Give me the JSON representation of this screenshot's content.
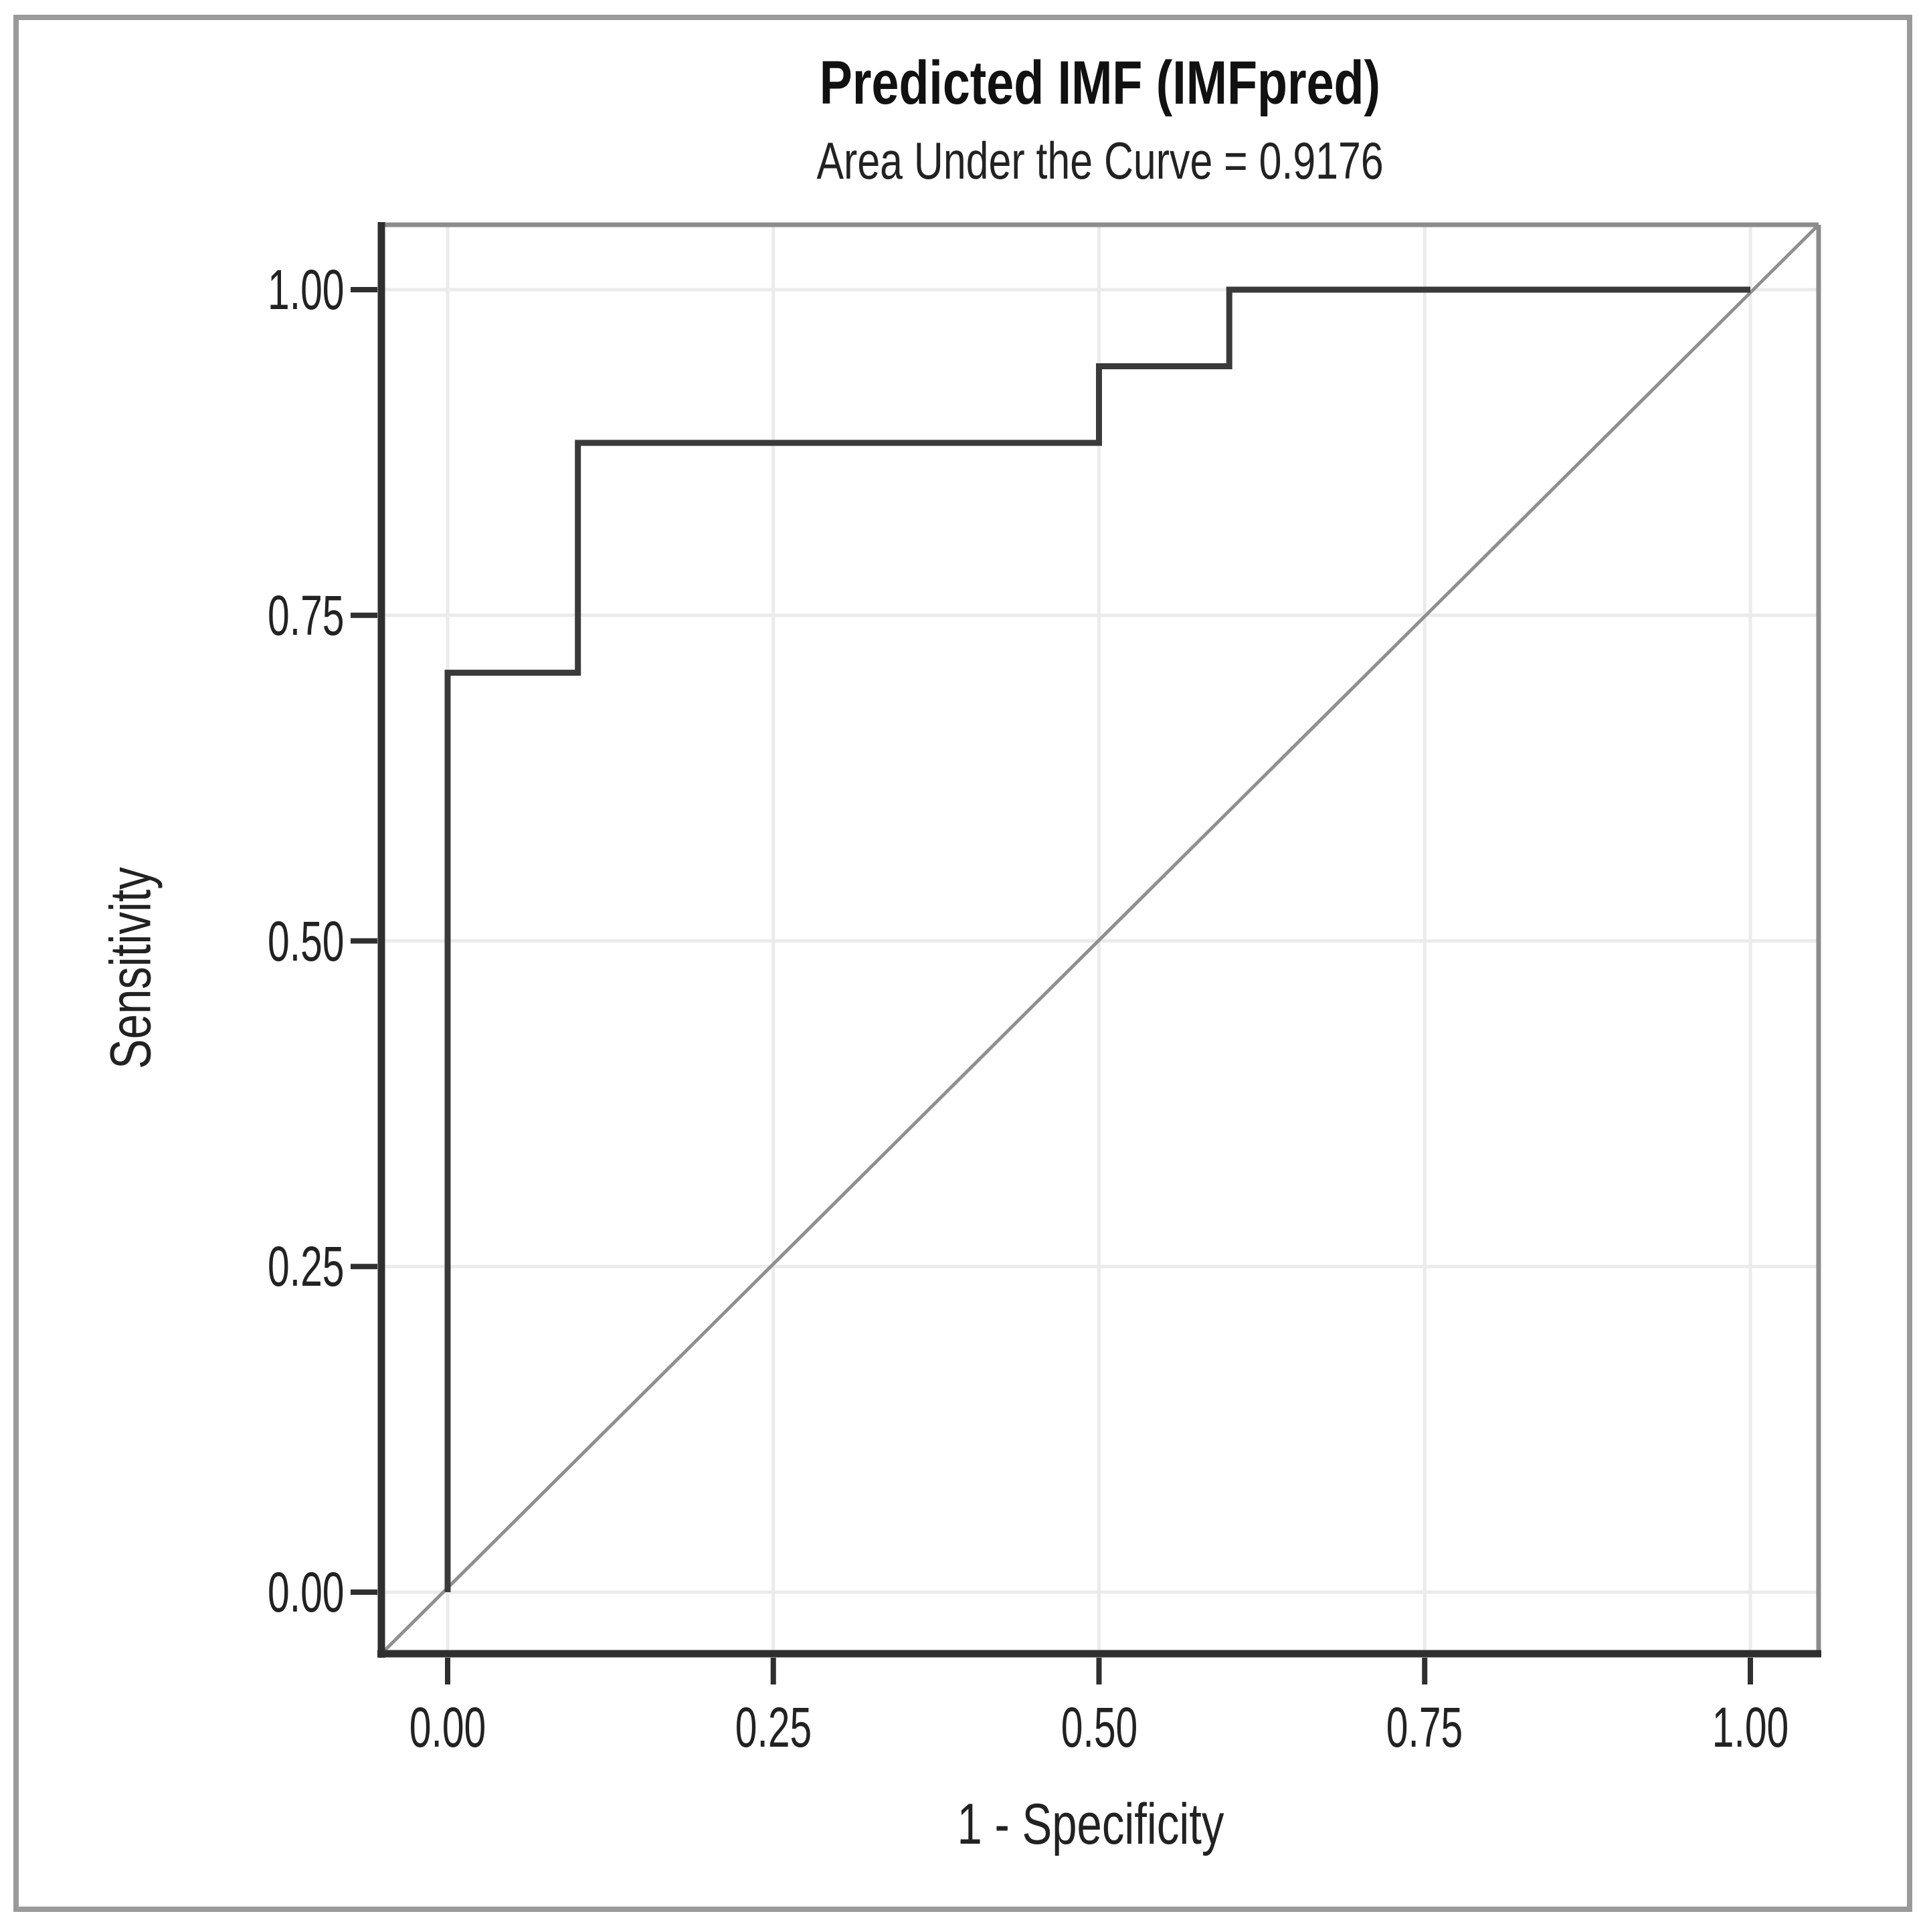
{
  "figure": {
    "kind": "ROC curve plot",
    "auc_value": "0.9176"
  },
  "colors": {
    "curve": "#3a3a3a",
    "diagonal": "#8f8f8f",
    "grid": "#ebebeb",
    "axis": "#2f2f2f",
    "box_border": "#8c8c8c",
    "outer_border": "#9a9a9a",
    "text": "#1f1f1f",
    "background": "#ffffff"
  },
  "chart_data": {
    "type": "line",
    "subtype": "roc-step",
    "title": "Predicted IMF (IMFpred)",
    "subtitle": "Area Under the Curve = 0.9176",
    "auc": 0.9176,
    "xlabel": "1 - Specificity",
    "ylabel": "Sensitivity",
    "xlim": [
      0,
      1
    ],
    "ylim": [
      0,
      1
    ],
    "grid": true,
    "legend": "none",
    "x_ticks": [
      "0.00",
      "0.25",
      "0.50",
      "0.75",
      "1.00"
    ],
    "y_ticks": [
      "0.00",
      "0.25",
      "0.50",
      "0.75",
      "1.00"
    ],
    "reference_diagonal": true,
    "series": [
      {
        "name": "ROC step curve",
        "draw": "step",
        "points": [
          [
            0.0,
            0.0
          ],
          [
            0.0,
            0.7059
          ],
          [
            0.1,
            0.7059
          ],
          [
            0.1,
            0.8824
          ],
          [
            0.5,
            0.8824
          ],
          [
            0.5,
            0.9412
          ],
          [
            0.6,
            0.9412
          ],
          [
            0.6,
            1.0
          ],
          [
            1.0,
            1.0
          ]
        ]
      },
      {
        "name": "Chance reference line",
        "draw": "diagonal",
        "points": [
          [
            0.0,
            0.0
          ],
          [
            1.0,
            1.0
          ]
        ]
      }
    ]
  }
}
